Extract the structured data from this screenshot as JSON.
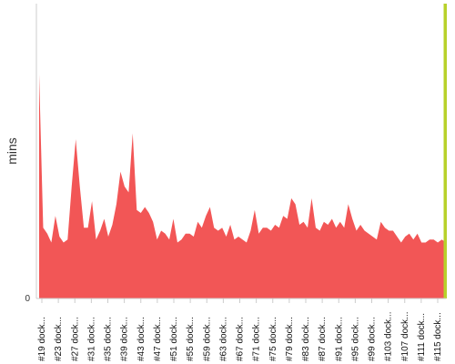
{
  "chart_data": {
    "type": "area",
    "title": "",
    "xlabel": "",
    "ylabel": "mins",
    "ylim": [
      0,
      100
    ],
    "yticks": [
      0
    ],
    "grid": false,
    "legend": "none",
    "x_tick_labels": [
      "#19 dock...",
      "#23 dock...",
      "#27 dock...",
      "#31 dock...",
      "#35 dock...",
      "#39 dock...",
      "#43 dock...",
      "#47 dock...",
      "#51 dock...",
      "#55 dock...",
      "#59 dock...",
      "#63 dock...",
      "#67 dock...",
      "#71 dock...",
      "#75 dock...",
      "#79 dock...",
      "#83 dock...",
      "#87 dock...",
      "#91 dock...",
      "#95 dock...",
      "#99 dock...",
      "#103 dock...",
      "#107 dock...",
      "#111 dock...",
      "#115 dock..."
    ],
    "x_start": 18,
    "x_end": 118,
    "series": [
      {
        "color": "#f25656",
        "x_start": 18,
        "values": [
          76,
          24,
          22,
          19,
          28,
          21,
          19,
          20,
          38,
          54,
          38,
          24,
          24,
          33,
          20,
          23,
          27,
          21,
          25,
          32,
          43,
          38,
          36,
          56,
          30,
          29,
          31,
          29,
          26,
          20,
          23,
          22,
          20,
          27,
          19,
          20,
          22,
          22,
          21,
          26,
          24,
          28,
          31,
          24,
          23,
          24,
          21,
          25,
          20,
          21,
          20,
          19,
          23,
          30,
          22,
          24,
          24,
          23,
          25,
          24,
          28,
          27,
          34,
          32,
          25,
          26,
          24,
          34,
          24,
          23,
          26,
          25,
          27,
          24,
          26,
          24,
          32,
          27,
          23,
          25,
          23,
          22,
          21,
          20,
          26,
          24,
          23,
          23,
          21,
          19,
          21,
          22,
          20,
          22,
          19,
          19,
          20,
          20,
          19,
          20,
          19
        ]
      },
      {
        "color": "#b8d12a",
        "x_start": 118,
        "values": [
          100
        ]
      }
    ]
  }
}
